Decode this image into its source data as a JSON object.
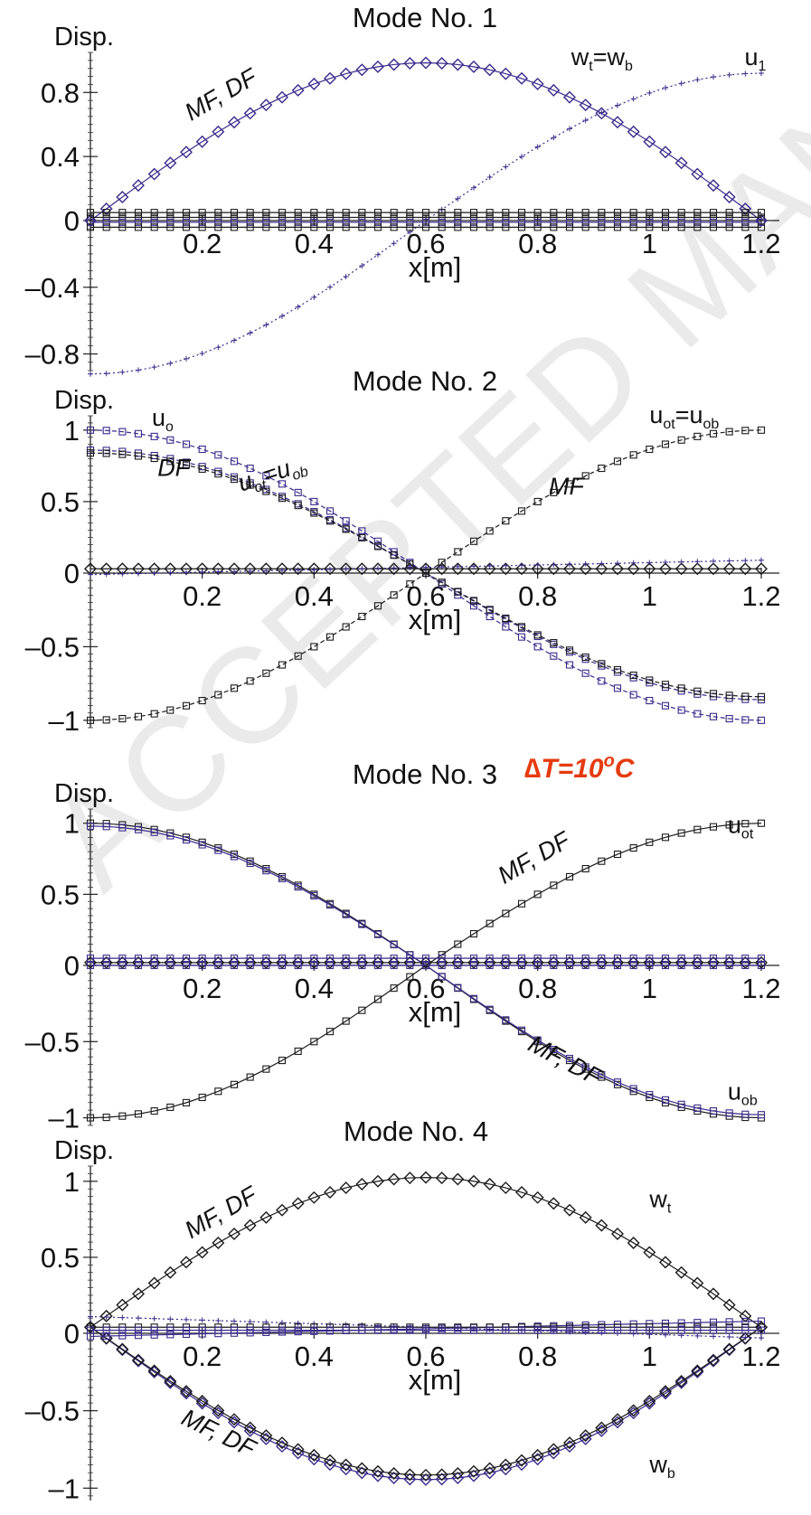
{
  "watermark": "ACCEPTED MANUSCRIPT",
  "colors": {
    "black": "#1a1a1a",
    "purple": "#3b2a8c",
    "annotation_red": "#e63b0f"
  },
  "chart_data": [
    {
      "type": "line",
      "title": "Mode No. 1",
      "ylabel": "Disp.",
      "xlabel": "x[m]",
      "xlim": [
        0,
        1.2
      ],
      "ylim": [
        -0.9,
        1.05
      ],
      "xticks": [
        "0.2",
        "0.4",
        "0.6",
        "0.8",
        "1",
        "1.2"
      ],
      "yticks": [
        {
          "v": 0.8,
          "label": "0.8"
        },
        {
          "v": 0.4,
          "label": "0.4"
        },
        {
          "v": 0,
          "label": "0"
        },
        {
          "v": -0.4,
          "label": "–0.4"
        },
        {
          "v": -0.8,
          "label": "–0.8"
        }
      ],
      "annotations": [
        {
          "text": "MF, DF",
          "x": 0.18,
          "y": 0.62,
          "rot": -30,
          "italic": true
        },
        {
          "text": "w",
          "sub": "t",
          "tail": "=w",
          "sub2": "b",
          "x": 0.86,
          "y": 0.97,
          "rot": 0
        },
        {
          "text": "u",
          "sub": "1",
          "x": 1.17,
          "y": 0.97,
          "rot": 0
        }
      ],
      "series": [
        {
          "key": "w",
          "color": "purple",
          "marker": "diamond",
          "style": "solid",
          "shape": "sine",
          "amp": 1.0,
          "offset": 0
        },
        {
          "key": "u1",
          "color": "purple",
          "marker": "plus",
          "style": "dotted",
          "shape": "cosneg",
          "amp": 0.92,
          "offset": 0
        },
        {
          "key": "a",
          "color": "black",
          "marker": "square",
          "style": "solid",
          "shape": "flat",
          "amp": 0,
          "offset": 0.05
        },
        {
          "key": "b",
          "color": "black",
          "marker": "square",
          "style": "solid",
          "shape": "flat",
          "amp": 0,
          "offset": 0.02
        },
        {
          "key": "c",
          "color": "purple",
          "marker": "square",
          "style": "solid",
          "shape": "flat",
          "amp": 0,
          "offset": -0.01
        },
        {
          "key": "d",
          "color": "black",
          "marker": "square",
          "style": "solid",
          "shape": "flat",
          "amp": 0,
          "offset": -0.04
        }
      ]
    },
    {
      "type": "line",
      "title": "Mode No. 2",
      "ylabel": "Disp.",
      "xlabel": "x[m]",
      "xlim": [
        0,
        1.2
      ],
      "ylim": [
        -1.05,
        1.1
      ],
      "xticks": [
        "0.2",
        "0.4",
        "0.6",
        "0.8",
        "1",
        "1.2"
      ],
      "yticks": [
        {
          "v": 1,
          "label": "1"
        },
        {
          "v": 0.5,
          "label": "0.5"
        },
        {
          "v": 0,
          "label": "0"
        },
        {
          "v": -0.5,
          "label": "–0.5"
        },
        {
          "v": -1,
          "label": "–1"
        }
      ],
      "annotations": [
        {
          "text": "u",
          "sub": "o",
          "x": 0.11,
          "y": 1.03,
          "rot": 0
        },
        {
          "text": "DF",
          "x": 0.12,
          "y": 0.68,
          "rot": 0,
          "italic": true
        },
        {
          "text": "u",
          "sub": "ot",
          "tail": "=u",
          "sub2": "ob",
          "x": 0.27,
          "y": 0.57,
          "rot": -18,
          "italic": true
        },
        {
          "text": "MF",
          "x": 0.82,
          "y": 0.55,
          "rot": 0,
          "italic": true
        },
        {
          "text": "u",
          "sub": "ot",
          "tail": "=u",
          "sub2": "ob",
          "x": 1.0,
          "y": 1.05,
          "rot": 0
        }
      ],
      "series": [
        {
          "key": "uo",
          "color": "purple",
          "marker": "square",
          "style": "dashed",
          "shape": "cos",
          "amp": 1.0,
          "offset": 0
        },
        {
          "key": "df1",
          "color": "purple",
          "marker": "square",
          "style": "dashed",
          "shape": "cos",
          "amp": 0.86,
          "offset": 0
        },
        {
          "key": "df2",
          "color": "black",
          "marker": "square",
          "style": "dashed",
          "shape": "cos",
          "amp": 0.84,
          "offset": 0
        },
        {
          "key": "mf",
          "color": "black",
          "marker": "square",
          "style": "dashed",
          "shape": "cosneg",
          "amp": 1.0,
          "offset": 0
        },
        {
          "key": "w",
          "color": "black",
          "marker": "diamond",
          "style": "solid",
          "shape": "flat",
          "amp": 0,
          "offset": 0.03
        },
        {
          "key": "p",
          "color": "purple",
          "marker": "plus",
          "style": "dotted",
          "shape": "lin",
          "amp": 0.1,
          "offset": -0.01
        }
      ]
    },
    {
      "type": "line",
      "title": "Mode No. 3",
      "ylabel": "Disp.",
      "xlabel": "x[m]",
      "xlim": [
        0,
        1.2
      ],
      "ylim": [
        -1.05,
        1.1
      ],
      "xticks": [
        "0.2",
        "0.4",
        "0.6",
        "0.8",
        "1",
        "1.2"
      ],
      "yticks": [
        {
          "v": 1,
          "label": "1"
        },
        {
          "v": 0.5,
          "label": "0.5"
        },
        {
          "v": 0,
          "label": "0"
        },
        {
          "v": -0.5,
          "label": "–0.5"
        },
        {
          "v": -1,
          "label": "–1"
        }
      ],
      "annotations": [
        {
          "text": "MF, DF",
          "x": 0.74,
          "y": 0.57,
          "rot": -30,
          "italic": true
        },
        {
          "text": "u",
          "sub": "ot",
          "x": 1.14,
          "y": 0.93,
          "rot": 0
        },
        {
          "text": "MF, DF",
          "x": 0.78,
          "y": -0.55,
          "rot": 28,
          "italic": true
        },
        {
          "text": "u",
          "sub": "ob",
          "x": 1.14,
          "y": -0.88,
          "rot": 0
        }
      ],
      "series": [
        {
          "key": "down",
          "color": "black",
          "marker": "square",
          "style": "solid",
          "shape": "cos",
          "amp": 1.0,
          "offset": 0
        },
        {
          "key": "down2",
          "color": "purple",
          "marker": "square",
          "style": "solid",
          "shape": "cos",
          "amp": 0.98,
          "offset": 0
        },
        {
          "key": "up",
          "color": "black",
          "marker": "square",
          "style": "solid",
          "shape": "cosneg",
          "amp": 1.0,
          "offset": 0
        },
        {
          "key": "f1",
          "color": "black",
          "marker": "diamond",
          "style": "solid",
          "shape": "flat",
          "amp": 0,
          "offset": 0.02
        },
        {
          "key": "f2",
          "color": "purple",
          "marker": "square",
          "style": "solid",
          "shape": "flat",
          "amp": 0,
          "offset": 0.05
        },
        {
          "key": "f3",
          "color": "purple",
          "marker": "square",
          "style": "solid",
          "shape": "flat",
          "amp": 0,
          "offset": 0.0
        }
      ]
    },
    {
      "type": "line",
      "title": "Mode No. 4",
      "ylabel": "Disp.",
      "xlabel": "x[m]",
      "xlim": [
        0,
        1.2
      ],
      "ylim": [
        -1.08,
        1.1
      ],
      "xticks": [
        "0.2",
        "0.4",
        "0.6",
        "0.8",
        "1",
        "1.2"
      ],
      "yticks": [
        {
          "v": 1,
          "label": "1"
        },
        {
          "v": 0.5,
          "label": "0.5"
        },
        {
          "v": 0,
          "label": "0"
        },
        {
          "v": -0.5,
          "label": "–0.5"
        },
        {
          "v": -1,
          "label": "–1"
        }
      ],
      "annotations": [
        {
          "text": "MF, DF",
          "x": 0.18,
          "y": 0.62,
          "rot": -30,
          "italic": true
        },
        {
          "text": "w",
          "sub": "t",
          "x": 1.0,
          "y": 0.83,
          "rot": 0
        },
        {
          "text": "MF, DF",
          "x": 0.16,
          "y": -0.58,
          "rot": 26,
          "italic": true
        },
        {
          "text": "w",
          "sub": "b",
          "x": 1.0,
          "y": -0.9,
          "rot": 0
        }
      ],
      "series": [
        {
          "key": "wt",
          "color": "black",
          "marker": "diamond",
          "style": "solid",
          "shape": "sine",
          "amp": 1.0,
          "offset": 0.04
        },
        {
          "key": "wb",
          "color": "purple",
          "marker": "diamond",
          "style": "solid",
          "shape": "sine",
          "amp": -1.0,
          "offset": 0.04
        },
        {
          "key": "wb2",
          "color": "black",
          "marker": "diamond",
          "style": "solid",
          "shape": "sine",
          "amp": -0.97,
          "offset": 0.04
        },
        {
          "key": "p1",
          "color": "purple",
          "marker": "plus",
          "style": "dotted",
          "shape": "lin",
          "amp": -0.14,
          "offset": 0.11
        },
        {
          "key": "s1",
          "color": "purple",
          "marker": "square",
          "style": "solid",
          "shape": "lin",
          "amp": 0.1,
          "offset": -0.02
        },
        {
          "key": "s2",
          "color": "black",
          "marker": "square",
          "style": "solid",
          "shape": "flat",
          "amp": 0,
          "offset": 0.04
        },
        {
          "key": "s3",
          "color": "purple",
          "marker": "square",
          "style": "solid",
          "shape": "flat",
          "amp": 0,
          "offset": 0.02
        }
      ]
    }
  ],
  "delta_t_label": "∆T=10",
  "delta_t_sup": "o",
  "delta_t_unit": "C"
}
